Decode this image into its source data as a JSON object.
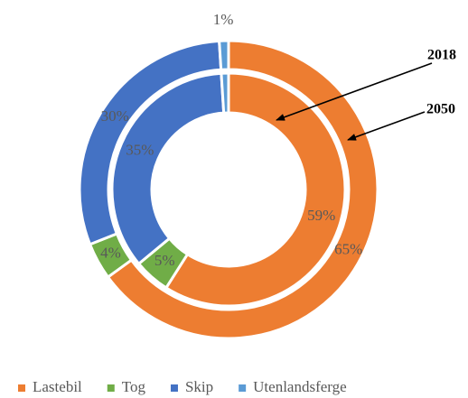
{
  "chart_data": {
    "type": "donut",
    "categories": [
      "Lastebil",
      "Tog",
      "Skip",
      "Utenlandsferge"
    ],
    "colors": [
      "#ED7D31",
      "#70AD47",
      "#4472C4",
      "#5B9BD5"
    ],
    "series": [
      {
        "name": "2018",
        "values": [
          59,
          5,
          35,
          1
        ],
        "value_labels": [
          "59%",
          "5%",
          "35%",
          null
        ]
      },
      {
        "name": "2050",
        "values": [
          65,
          4,
          30,
          1
        ],
        "value_labels": [
          "65%",
          "4%",
          "30%",
          "1%"
        ]
      }
    ],
    "legend": "bottom"
  }
}
